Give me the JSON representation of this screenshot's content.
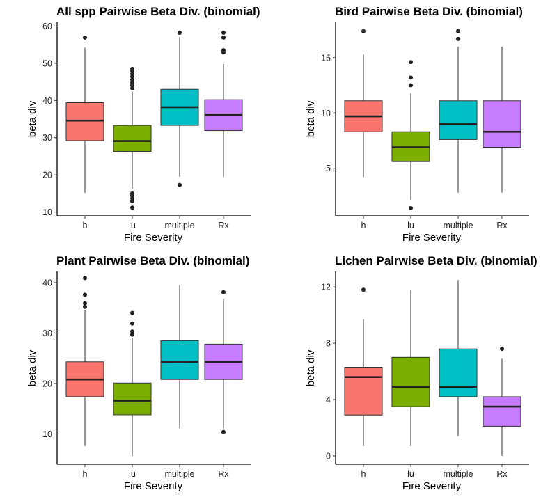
{
  "category_colors": [
    "#F8766D",
    "#7CAE00",
    "#00BFC4",
    "#C77CFF"
  ],
  "chart_data": [
    {
      "type": "boxplot",
      "title": "All spp Pairwise Beta Div. (binomial)",
      "xlabel": "Fire Severity",
      "ylabel": "beta div",
      "ylim": [
        9,
        61
      ],
      "yticks": [
        10,
        20,
        30,
        40,
        50,
        60
      ],
      "categories": [
        "h",
        "lu",
        "multiple",
        "Rx"
      ],
      "boxes": [
        {
          "min": 15.2,
          "q1": 29.2,
          "median": 34.6,
          "q3": 39.4,
          "max": 54.2,
          "outliers": [
            56.9
          ]
        },
        {
          "min": 16.2,
          "q1": 26.3,
          "median": 29.1,
          "q3": 33.3,
          "max": 42.4,
          "outliers": [
            11.2,
            12.9,
            13.7,
            14.4,
            15.0,
            43.3,
            44.1,
            44.8,
            45.6,
            46.4,
            47.1,
            47.9,
            48.5
          ]
        },
        {
          "min": 19.5,
          "q1": 33.3,
          "median": 38.2,
          "q3": 43.0,
          "max": 57.0,
          "outliers": [
            17.3,
            58.2
          ]
        },
        {
          "min": 19.5,
          "q1": 31.9,
          "median": 36.1,
          "q3": 40.2,
          "max": 49.8,
          "outliers": [
            52.9,
            53.5,
            56.9,
            58.2
          ]
        }
      ]
    },
    {
      "type": "boxplot",
      "title": "Bird Pairwise Beta Div. (binomial)",
      "xlabel": "Fire Severity",
      "ylabel": "beta div",
      "ylim": [
        0.7,
        18.2
      ],
      "yticks": [
        5,
        10,
        15
      ],
      "categories": [
        "h",
        "lu",
        "multiple",
        "Rx"
      ],
      "boxes": [
        {
          "min": 4.2,
          "q1": 8.3,
          "median": 9.7,
          "q3": 11.1,
          "max": 15.3,
          "outliers": [
            17.4
          ]
        },
        {
          "min": 2.1,
          "q1": 5.6,
          "median": 6.9,
          "q3": 8.3,
          "max": 11.8,
          "outliers": [
            1.4,
            12.5,
            13.2,
            14.6
          ]
        },
        {
          "min": 2.8,
          "q1": 7.6,
          "median": 9.0,
          "q3": 11.1,
          "max": 16.0,
          "outliers": [
            16.7,
            17.4
          ]
        },
        {
          "min": 2.8,
          "q1": 6.9,
          "median": 8.3,
          "q3": 11.1,
          "max": 16.0,
          "outliers": []
        }
      ]
    },
    {
      "type": "boxplot",
      "title": "Plant Pairwise Beta Div. (binomial)",
      "xlabel": "Fire Severity",
      "ylabel": "beta div",
      "ylim": [
        4.0,
        42.2
      ],
      "yticks": [
        10,
        20,
        30,
        40
      ],
      "categories": [
        "h",
        "lu",
        "multiple",
        "Rx"
      ],
      "boxes": [
        {
          "min": 7.6,
          "q1": 17.4,
          "median": 20.8,
          "q3": 24.3,
          "max": 34.5,
          "outliers": [
            35.2,
            35.9,
            37.6,
            40.9
          ]
        },
        {
          "min": 5.6,
          "q1": 13.8,
          "median": 16.6,
          "q3": 20.1,
          "max": 29.0,
          "outliers": [
            29.7,
            30.3,
            31.9,
            34.0
          ]
        },
        {
          "min": 11.1,
          "q1": 20.8,
          "median": 24.3,
          "q3": 28.5,
          "max": 39.5,
          "outliers": []
        },
        {
          "min": 11.1,
          "q1": 20.8,
          "median": 24.3,
          "q3": 27.8,
          "max": 36.8,
          "outliers": [
            10.4,
            38.1
          ]
        }
      ]
    },
    {
      "type": "boxplot",
      "title": "Lichen Pairwise Beta Div. (binomial)",
      "xlabel": "Fire Severity",
      "ylabel": "beta div",
      "ylim": [
        -0.6,
        13.1
      ],
      "yticks": [
        0,
        4,
        8,
        12
      ],
      "categories": [
        "h",
        "lu",
        "multiple",
        "Rx"
      ],
      "boxes": [
        {
          "min": 0.7,
          "q1": 2.9,
          "median": 5.6,
          "q3": 6.3,
          "max": 9.7,
          "outliers": [
            11.8
          ]
        },
        {
          "min": 0.7,
          "q1": 3.5,
          "median": 4.9,
          "q3": 7.0,
          "max": 11.8,
          "outliers": []
        },
        {
          "min": 1.4,
          "q1": 4.2,
          "median": 4.9,
          "q3": 7.6,
          "max": 12.5,
          "outliers": []
        },
        {
          "min": 0.0,
          "q1": 2.1,
          "median": 3.5,
          "q3": 4.2,
          "max": 6.9,
          "outliers": [
            7.6
          ]
        }
      ]
    }
  ]
}
